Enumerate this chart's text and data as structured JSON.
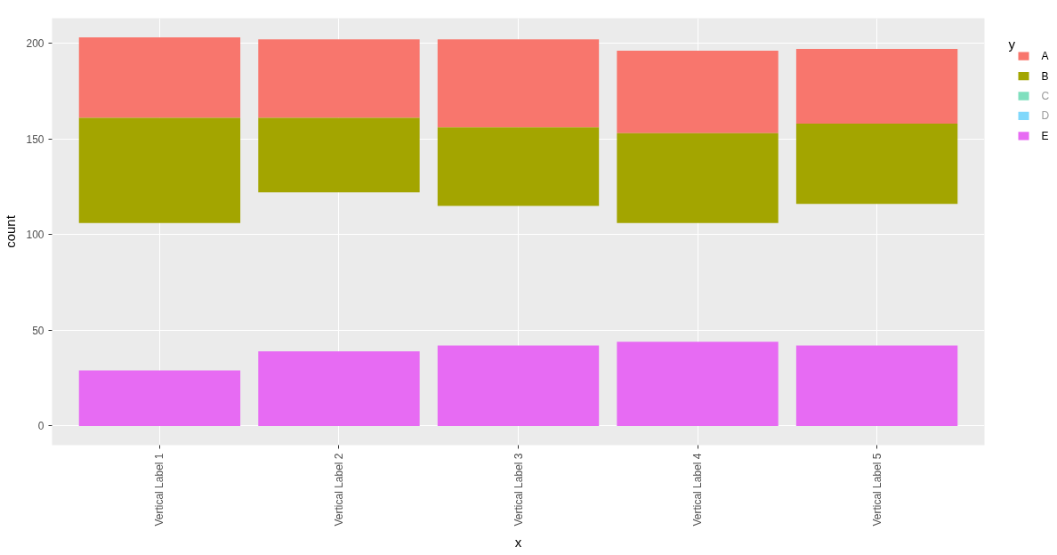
{
  "chart_data": {
    "type": "bar",
    "xlabel": "x",
    "ylabel": "count",
    "legend_title": "y",
    "categories": [
      "Vertical Label 1",
      "Vertical Label 2",
      "Vertical Label 3",
      "Vertical Label 4",
      "Vertical Label 5"
    ],
    "series": [
      {
        "name": "A",
        "color": "#F8766D",
        "values": [
          42,
          41,
          46,
          43,
          39
        ],
        "base": [
          161,
          161,
          156,
          153,
          158
        ]
      },
      {
        "name": "B",
        "color": "#A3A500",
        "values": [
          55,
          39,
          41,
          47,
          42
        ],
        "base": [
          106,
          122,
          115,
          106,
          116
        ]
      },
      {
        "name": "C",
        "color": "#80DFBE",
        "values": [
          null,
          null,
          null,
          null,
          null
        ]
      },
      {
        "name": "D",
        "color": "#80D8FB",
        "values": [
          null,
          null,
          null,
          null,
          null
        ]
      },
      {
        "name": "E",
        "color": "#E76BF3",
        "values": [
          29,
          39,
          42,
          44,
          42
        ]
      }
    ],
    "ylim": [
      -10,
      213
    ],
    "yticks": [
      0,
      50,
      100,
      150,
      200
    ],
    "grid": true,
    "legend": "right"
  }
}
